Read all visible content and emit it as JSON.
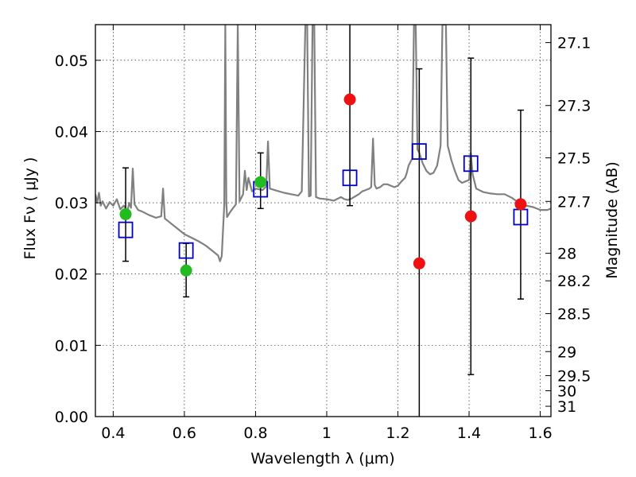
{
  "chart_data": {
    "type": "scatter",
    "xlabel": "Wavelength  λ (μm)",
    "ylabel": "Flux  Fν  ( μJy )",
    "y2label": "Magnitude (AB)",
    "xlim": [
      0.35,
      1.63
    ],
    "ylim": [
      0.0,
      0.055
    ],
    "x_ticks": [
      0.4,
      0.6,
      0.8,
      1.0,
      1.2,
      1.4,
      1.6
    ],
    "x_tick_labels": [
      "0.4",
      "0.6",
      "0.8",
      "1",
      "1.2",
      "1.4",
      "1.6"
    ],
    "y_ticks": [
      0.0,
      0.01,
      0.02,
      0.03,
      0.04,
      0.05
    ],
    "y_tick_labels": [
      "0.00",
      "0.01",
      "0.02",
      "0.03",
      "0.04",
      "0.05"
    ],
    "y2_ticks": [
      27.1,
      27.3,
      27.5,
      27.7,
      28,
      28.2,
      28.5,
      29,
      29.5,
      30,
      31
    ],
    "y2_tick_labels": [
      "27.1",
      "27.3",
      "27.5",
      "27.7",
      "28",
      "28.2",
      "28.5",
      "29",
      "29.5",
      "30",
      "31"
    ],
    "grid": true,
    "colors": {
      "spectrum": "#808080",
      "observed_green": "#22bb22",
      "observed_red": "#ee1111",
      "model_box": "#0000cc",
      "error_bar": "#000000"
    },
    "series": [
      {
        "kind": "line",
        "points": [
          [
            0.35,
            0.0312
          ],
          [
            0.355,
            0.03
          ],
          [
            0.36,
            0.0314
          ],
          [
            0.365,
            0.0296
          ],
          [
            0.37,
            0.0302
          ],
          [
            0.38,
            0.0292
          ],
          [
            0.39,
            0.0301
          ],
          [
            0.4,
            0.0296
          ],
          [
            0.41,
            0.0305
          ],
          [
            0.42,
            0.0291
          ],
          [
            0.43,
            0.0296
          ],
          [
            0.44,
            0.0288
          ],
          [
            0.445,
            0.03
          ],
          [
            0.45,
            0.0293
          ],
          [
            0.455,
            0.0348
          ],
          [
            0.46,
            0.0298
          ],
          [
            0.47,
            0.029
          ],
          [
            0.48,
            0.0288
          ],
          [
            0.5,
            0.0283
          ],
          [
            0.52,
            0.0279
          ],
          [
            0.535,
            0.0281
          ],
          [
            0.54,
            0.032
          ],
          [
            0.545,
            0.0278
          ],
          [
            0.56,
            0.0272
          ],
          [
            0.58,
            0.0264
          ],
          [
            0.6,
            0.0256
          ],
          [
            0.62,
            0.0251
          ],
          [
            0.64,
            0.0246
          ],
          [
            0.66,
            0.024
          ],
          [
            0.68,
            0.0232
          ],
          [
            0.695,
            0.0226
          ],
          [
            0.7,
            0.0218
          ],
          [
            0.705,
            0.0225
          ],
          [
            0.712,
            0.0297
          ],
          [
            0.715,
            0.055
          ],
          [
            0.718,
            0.03
          ],
          [
            0.72,
            0.028
          ],
          [
            0.73,
            0.0288
          ],
          [
            0.745,
            0.0298
          ],
          [
            0.75,
            0.055
          ],
          [
            0.755,
            0.0302
          ],
          [
            0.765,
            0.0312
          ],
          [
            0.77,
            0.0345
          ],
          [
            0.775,
            0.0318
          ],
          [
            0.78,
            0.0335
          ],
          [
            0.79,
            0.0316
          ],
          [
            0.8,
            0.032
          ],
          [
            0.82,
            0.0318
          ],
          [
            0.83,
            0.0323
          ],
          [
            0.835,
            0.0386
          ],
          [
            0.84,
            0.032
          ],
          [
            0.86,
            0.0317
          ],
          [
            0.88,
            0.0314
          ],
          [
            0.9,
            0.0312
          ],
          [
            0.92,
            0.031
          ],
          [
            0.93,
            0.0316
          ],
          [
            0.94,
            0.055
          ],
          [
            0.945,
            0.055
          ],
          [
            0.95,
            0.0309
          ],
          [
            0.955,
            0.031
          ],
          [
            0.96,
            0.055
          ],
          [
            0.965,
            0.055
          ],
          [
            0.97,
            0.0308
          ],
          [
            0.98,
            0.0306
          ],
          [
            1.0,
            0.0305
          ],
          [
            1.02,
            0.0303
          ],
          [
            1.04,
            0.0308
          ],
          [
            1.05,
            0.0305
          ],
          [
            1.06,
            0.0304
          ],
          [
            1.07,
            0.0306
          ],
          [
            1.08,
            0.0309
          ],
          [
            1.09,
            0.0312
          ],
          [
            1.1,
            0.0316
          ],
          [
            1.11,
            0.0318
          ],
          [
            1.12,
            0.032
          ],
          [
            1.125,
            0.0322
          ],
          [
            1.13,
            0.039
          ],
          [
            1.135,
            0.0325
          ],
          [
            1.14,
            0.032
          ],
          [
            1.15,
            0.0322
          ],
          [
            1.16,
            0.0326
          ],
          [
            1.17,
            0.0326
          ],
          [
            1.18,
            0.0324
          ],
          [
            1.19,
            0.0322
          ],
          [
            1.2,
            0.0324
          ],
          [
            1.21,
            0.033
          ],
          [
            1.22,
            0.0335
          ],
          [
            1.225,
            0.0342
          ],
          [
            1.23,
            0.0352
          ],
          [
            1.24,
            0.0362
          ],
          [
            1.245,
            0.055
          ],
          [
            1.25,
            0.055
          ],
          [
            1.255,
            0.0375
          ],
          [
            1.26,
            0.037
          ],
          [
            1.27,
            0.0355
          ],
          [
            1.28,
            0.0345
          ],
          [
            1.29,
            0.034
          ],
          [
            1.3,
            0.0342
          ],
          [
            1.31,
            0.0352
          ],
          [
            1.32,
            0.038
          ],
          [
            1.325,
            0.055
          ],
          [
            1.33,
            0.055
          ],
          [
            1.335,
            0.055
          ],
          [
            1.34,
            0.038
          ],
          [
            1.35,
            0.036
          ],
          [
            1.36,
            0.0345
          ],
          [
            1.37,
            0.0332
          ],
          [
            1.38,
            0.0328
          ],
          [
            1.39,
            0.033
          ],
          [
            1.4,
            0.0332
          ],
          [
            1.405,
            0.037
          ],
          [
            1.41,
            0.034
          ],
          [
            1.42,
            0.032
          ],
          [
            1.44,
            0.0315
          ],
          [
            1.46,
            0.0313
          ],
          [
            1.48,
            0.0312
          ],
          [
            1.5,
            0.0312
          ],
          [
            1.52,
            0.0307
          ],
          [
            1.54,
            0.03
          ],
          [
            1.56,
            0.0296
          ],
          [
            1.58,
            0.0294
          ],
          [
            1.6,
            0.029
          ],
          [
            1.62,
            0.029
          ],
          [
            1.63,
            0.0292
          ]
        ]
      },
      {
        "kind": "observed",
        "color": "green",
        "points": [
          {
            "x": 0.435,
            "y": 0.0284,
            "err_lo": 0.0218,
            "err_hi": 0.0349
          },
          {
            "x": 0.605,
            "y": 0.0205,
            "err_lo": 0.0168,
            "err_hi": 0.0243
          },
          {
            "x": 0.814,
            "y": 0.0329,
            "err_lo": 0.0292,
            "err_hi": 0.037
          }
        ]
      },
      {
        "kind": "observed",
        "color": "red",
        "points": [
          {
            "x": 1.065,
            "y": 0.0445,
            "err_lo": 0.0296,
            "err_hi": 0.0555
          },
          {
            "x": 1.26,
            "y": 0.0215,
            "err_lo": 0.0,
            "err_hi": 0.0488
          },
          {
            "x": 1.405,
            "y": 0.0281,
            "err_lo": 0.0059,
            "err_hi": 0.0503
          },
          {
            "x": 1.545,
            "y": 0.0298,
            "err_lo": 0.0165,
            "err_hi": 0.043
          }
        ]
      },
      {
        "kind": "model_box",
        "points": [
          {
            "x": 0.435,
            "y": 0.0262
          },
          {
            "x": 0.605,
            "y": 0.0233
          },
          {
            "x": 0.814,
            "y": 0.0319
          },
          {
            "x": 1.065,
            "y": 0.0335
          },
          {
            "x": 1.26,
            "y": 0.0372
          },
          {
            "x": 1.405,
            "y": 0.0355
          },
          {
            "x": 1.545,
            "y": 0.028
          }
        ]
      }
    ]
  }
}
